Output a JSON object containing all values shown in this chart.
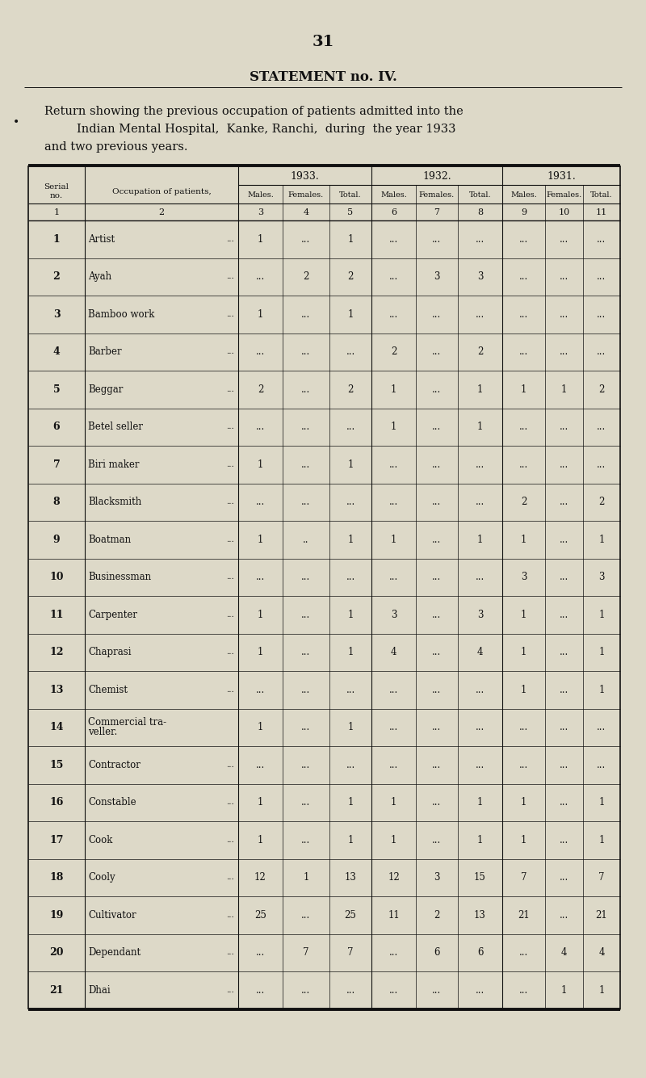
{
  "page_number": "31",
  "statement_title": "STATEMENT no. IV.",
  "description_lines": [
    "Return showing the previous occupation of patients admitted into the",
    "Indian Mental Hospital,  Kanke, Ranchi,  during  the year 1933",
    "and two previous years."
  ],
  "year_headers": [
    "1933.",
    "1932.",
    "1931."
  ],
  "sub_headers": [
    "Males.",
    "Females.",
    "Total.",
    "Males.",
    "Females.",
    "Total.",
    "Males.",
    "Females.",
    "Total."
  ],
  "col_nums": [
    "1",
    "2",
    "3",
    "4",
    "5",
    "6",
    "7",
    "8",
    "9",
    "10",
    "11"
  ],
  "rows": [
    {
      "serial": "1",
      "occupation": "Artist",
      "suffix": "...",
      "y1933": [
        "1",
        "...",
        "1"
      ],
      "y1932": [
        "...",
        "...",
        "..."
      ],
      "y1931": [
        "...",
        "...",
        "..."
      ]
    },
    {
      "serial": "2",
      "occupation": "Ayah",
      "suffix": "...",
      "y1933": [
        "...",
        "2",
        "2"
      ],
      "y1932": [
        "...",
        "3",
        "3"
      ],
      "y1931": [
        "...",
        "...",
        "..."
      ]
    },
    {
      "serial": "3",
      "occupation": "Bamboo work",
      "suffix": "...",
      "y1933": [
        "1",
        "...",
        "1"
      ],
      "y1932": [
        "...",
        "...",
        "..."
      ],
      "y1931": [
        "...",
        "...",
        "..."
      ]
    },
    {
      "serial": "4",
      "occupation": "Barber",
      "suffix": "...",
      "y1933": [
        "...",
        "...",
        "..."
      ],
      "y1932": [
        "2",
        "...",
        "2"
      ],
      "y1931": [
        "...",
        "...",
        "..."
      ]
    },
    {
      "serial": "5",
      "occupation": "Beggar",
      "suffix": "...",
      "y1933": [
        "2",
        "...",
        "2"
      ],
      "y1932": [
        "1",
        "...",
        "1"
      ],
      "y1931": [
        "1",
        "1",
        "2"
      ]
    },
    {
      "serial": "6",
      "occupation": "Betel seller",
      "suffix": "...",
      "y1933": [
        "...",
        "...",
        "..."
      ],
      "y1932": [
        "1",
        "...",
        "1"
      ],
      "y1931": [
        "...",
        "...",
        "..."
      ]
    },
    {
      "serial": "7",
      "occupation": "Biri maker",
      "suffix": "...",
      "y1933": [
        "1",
        "...",
        "1"
      ],
      "y1932": [
        "...",
        "...",
        "..."
      ],
      "y1931": [
        "...",
        "...",
        "..."
      ]
    },
    {
      "serial": "8",
      "occupation": "Blacksmith",
      "suffix": "...",
      "y1933": [
        "...",
        "...",
        "..."
      ],
      "y1932": [
        "...",
        "...",
        "..."
      ],
      "y1931": [
        "2",
        "...",
        "2"
      ]
    },
    {
      "serial": "9",
      "occupation": "Boatman",
      "suffix": "...",
      "y1933": [
        "1",
        "..",
        "1"
      ],
      "y1932": [
        "1",
        "...",
        "1"
      ],
      "y1931": [
        "1",
        "...",
        "1"
      ]
    },
    {
      "serial": "10",
      "occupation": "Businessman",
      "suffix": "...",
      "y1933": [
        "...",
        "...",
        "..."
      ],
      "y1932": [
        "...",
        "...",
        "..."
      ],
      "y1931": [
        "3",
        "...",
        "3"
      ]
    },
    {
      "serial": "11",
      "occupation": "Carpenter",
      "suffix": "...",
      "y1933": [
        "1",
        "...",
        "1"
      ],
      "y1932": [
        "3",
        "...",
        "3"
      ],
      "y1931": [
        "1",
        "...",
        "1"
      ]
    },
    {
      "serial": "12",
      "occupation": "Chaprasi",
      "suffix": "...",
      "y1933": [
        "1",
        "...",
        "1"
      ],
      "y1932": [
        "4",
        "...",
        "4"
      ],
      "y1931": [
        "1",
        "...",
        "1"
      ]
    },
    {
      "serial": "13",
      "occupation": "Chemist",
      "suffix": "...",
      "y1933": [
        "...",
        "...",
        "..."
      ],
      "y1932": [
        "...",
        "...",
        "..."
      ],
      "y1931": [
        "1",
        "...",
        "1"
      ]
    },
    {
      "serial": "14",
      "occupation": "Commercial tra-\nveller.",
      "suffix": "",
      "y1933": [
        "1",
        "...",
        "1"
      ],
      "y1932": [
        "...",
        "...",
        "..."
      ],
      "y1931": [
        "...",
        "...",
        "..."
      ]
    },
    {
      "serial": "15",
      "occupation": "Contractor",
      "suffix": "...",
      "y1933": [
        "...",
        "...",
        "..."
      ],
      "y1932": [
        "...",
        "...",
        "..."
      ],
      "y1931": [
        "...",
        "...",
        "..."
      ]
    },
    {
      "serial": "16",
      "occupation": "Constable",
      "suffix": "...",
      "y1933": [
        "1",
        "...",
        "1"
      ],
      "y1932": [
        "1",
        "...",
        "1"
      ],
      "y1931": [
        "1",
        "...",
        "1"
      ]
    },
    {
      "serial": "17",
      "occupation": "Cook",
      "suffix": "...",
      "y1933": [
        "1",
        "...",
        "1"
      ],
      "y1932": [
        "1",
        "...",
        "1"
      ],
      "y1931": [
        "1",
        "...",
        "1"
      ]
    },
    {
      "serial": "18",
      "occupation": "Cooly",
      "suffix": "...",
      "y1933": [
        "12",
        "1",
        "13"
      ],
      "y1932": [
        "12",
        "3",
        "15"
      ],
      "y1931": [
        "7",
        "...",
        "7"
      ]
    },
    {
      "serial": "19",
      "occupation": "Cultivator",
      "suffix": "...",
      "y1933": [
        "25",
        "...",
        "25"
      ],
      "y1932": [
        "11",
        "2",
        "13"
      ],
      "y1931": [
        "21",
        "...",
        "21"
      ]
    },
    {
      "serial": "20",
      "occupation": "Dependant",
      "suffix": "...",
      "y1933": [
        "...",
        "7",
        "7"
      ],
      "y1932": [
        "...",
        "6",
        "6"
      ],
      "y1931": [
        "...",
        "4",
        "4"
      ]
    },
    {
      "serial": "21",
      "occupation": "Dhai",
      "suffix": "...",
      "y1933": [
        "...",
        "...",
        "..."
      ],
      "y1932": [
        "...",
        "...",
        "..."
      ],
      "y1931": [
        "...",
        "1",
        "1"
      ]
    }
  ],
  "bg_color": "#ddd9c8",
  "text_color": "#111111",
  "line_color": "#111111",
  "fig_w": 8.0,
  "fig_h": 13.35,
  "dpi": 100
}
